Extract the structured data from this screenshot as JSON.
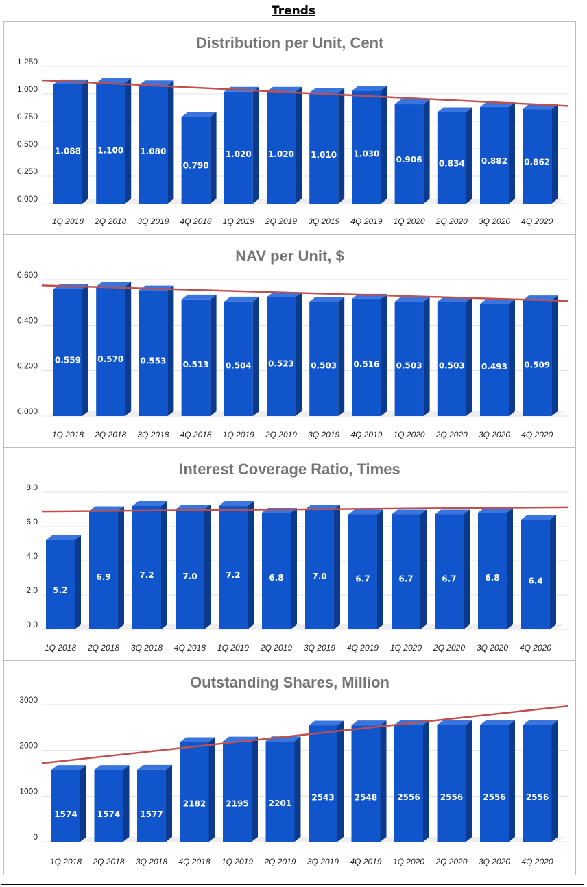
{
  "page": {
    "title": "Trends"
  },
  "colors": {
    "bar_front": "#1155cc",
    "bar_side": "#0c3a8c",
    "bar_top": "#3a74dd",
    "trend": "#c0504d",
    "grid": "#e0e0e0",
    "title": "#757575"
  },
  "chart_data": [
    {
      "type": "bar",
      "title": "Distribution per Unit, Cent",
      "categories": [
        "1Q 2018",
        "2Q 2018",
        "3Q 2018",
        "4Q 2018",
        "1Q 2019",
        "2Q 2019",
        "3Q 2019",
        "4Q 2019",
        "1Q 2020",
        "2Q 2020",
        "3Q 2020",
        "4Q 2020"
      ],
      "values": [
        1.088,
        1.1,
        1.08,
        0.79,
        1.02,
        1.02,
        1.01,
        1.03,
        0.906,
        0.834,
        0.882,
        0.862
      ],
      "labels": [
        "1.088",
        "1.100",
        "1.080",
        "0.790",
        "1.020",
        "1.020",
        "1.010",
        "1.030",
        "0.906",
        "0.834",
        "0.882",
        "0.862"
      ],
      "ylim": [
        0,
        1.25
      ],
      "yticks": [
        "0.000",
        "0.250",
        "0.500",
        "0.750",
        "1.000",
        "1.250"
      ],
      "ytick_values": [
        0,
        0.25,
        0.5,
        0.75,
        1.0,
        1.25
      ],
      "trendline": true
    },
    {
      "type": "bar",
      "title": "NAV per Unit, $",
      "categories": [
        "1Q 2018",
        "2Q 2018",
        "3Q 2018",
        "4Q 2018",
        "1Q 2019",
        "2Q 2019",
        "3Q 2019",
        "4Q 2019",
        "1Q 2020",
        "2Q 2020",
        "3Q 2020",
        "4Q 2020"
      ],
      "values": [
        0.559,
        0.57,
        0.553,
        0.513,
        0.504,
        0.523,
        0.503,
        0.516,
        0.503,
        0.503,
        0.493,
        0.509
      ],
      "labels": [
        "0.559",
        "0.570",
        "0.553",
        "0.513",
        "0.504",
        "0.523",
        "0.503",
        "0.516",
        "0.503",
        "0.503",
        "0.493",
        "0.509"
      ],
      "ylim": [
        0,
        0.6
      ],
      "yticks": [
        "0.000",
        "0.200",
        "0.400",
        "0.600"
      ],
      "ytick_values": [
        0,
        0.2,
        0.4,
        0.6
      ],
      "trendline": true
    },
    {
      "type": "bar",
      "title": "Interest Coverage Ratio, Times",
      "categories": [
        "1Q 2018",
        "2Q 2018",
        "3Q 2018",
        "4Q 2018",
        "1Q 2019",
        "2Q 2019",
        "3Q 2019",
        "4Q 2019",
        "1Q 2020",
        "2Q 2020",
        "3Q 2020",
        "4Q 2020"
      ],
      "values": [
        5.2,
        6.9,
        7.2,
        7.0,
        7.2,
        6.8,
        7.0,
        6.7,
        6.7,
        6.7,
        6.8,
        6.4
      ],
      "labels": [
        "5.2",
        "6.9",
        "7.2",
        "7.0",
        "7.2",
        "6.8",
        "7.0",
        "6.7",
        "6.7",
        "6.7",
        "6.8",
        "6.4"
      ],
      "ylim": [
        0,
        8
      ],
      "yticks": [
        "0.0",
        "2.0",
        "4.0",
        "6.0",
        "8.0"
      ],
      "ytick_values": [
        0,
        2,
        4,
        6,
        8
      ],
      "trendline": true
    },
    {
      "type": "bar",
      "title": "Outstanding Shares, Million",
      "categories": [
        "1Q 2018",
        "2Q 2018",
        "3Q 2018",
        "4Q 2018",
        "1Q 2019",
        "2Q 2019",
        "3Q 2019",
        "4Q 2019",
        "1Q 2020",
        "2Q 2020",
        "3Q 2020",
        "4Q 2020"
      ],
      "values": [
        1574,
        1574,
        1577,
        2182,
        2195,
        2201,
        2543,
        2548,
        2556,
        2556,
        2556,
        2556
      ],
      "labels": [
        "1574",
        "1574",
        "1577",
        "2182",
        "2195",
        "2201",
        "2543",
        "2548",
        "2556",
        "2556",
        "2556",
        "2556"
      ],
      "ylim": [
        0,
        3000
      ],
      "yticks": [
        "0",
        "1000",
        "2000",
        "3000"
      ],
      "ytick_values": [
        0,
        1000,
        2000,
        3000
      ],
      "trendline": true
    }
  ]
}
